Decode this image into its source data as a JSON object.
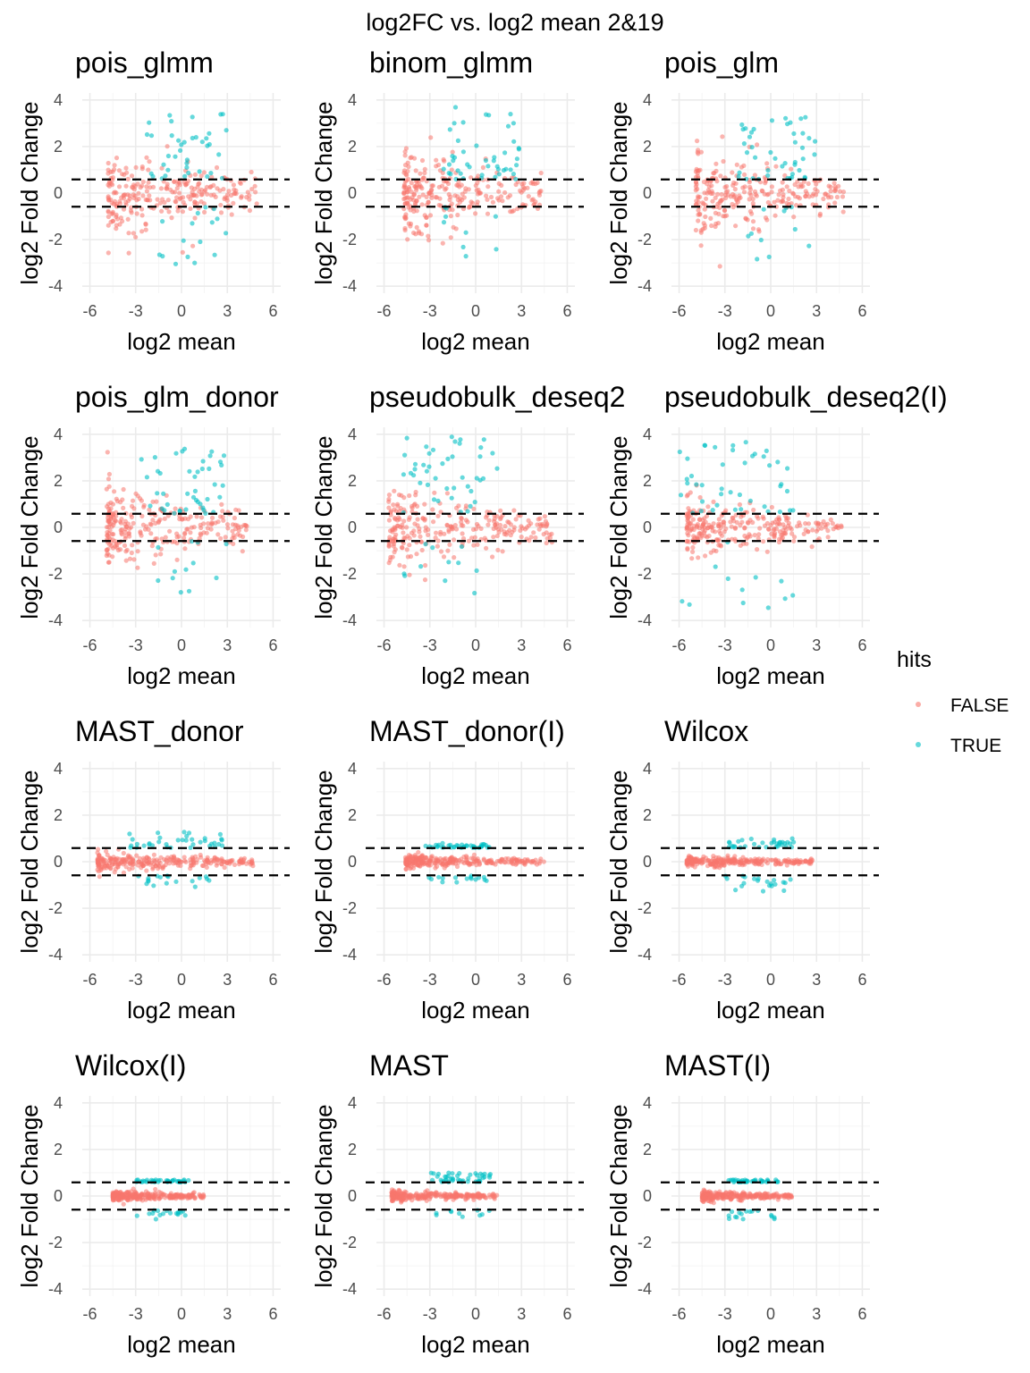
{
  "title": "log2FC vs. log2 mean  2&19",
  "legend": {
    "title": "hits",
    "entries": [
      {
        "label": "FALSE",
        "color": "#F8766D"
      },
      {
        "label": "TRUE",
        "color": "#00BFC4"
      }
    ]
  },
  "chart_data": [
    {
      "type": "scatter",
      "title": "pois_glmm",
      "xlabel": "log2 mean",
      "ylabel": "log2 Fold Change",
      "xlim": [
        -6.5,
        6.5
      ],
      "ylim": [
        -4.3,
        4.3
      ],
      "xticks": [
        -6,
        -3,
        0,
        3,
        6
      ],
      "yticks": [
        -4,
        -2,
        0,
        2,
        4
      ],
      "hlines": [
        -0.585,
        0.585
      ],
      "series": [
        {
          "name": "FALSE",
          "x_range": [
            -4.8,
            5.0
          ],
          "y_spread": [
            -3.5,
            3.6
          ]
        },
        {
          "name": "TRUE",
          "x_range": [
            -2.3,
            3.0
          ],
          "y_range": [
            -3.1,
            3.5
          ]
        }
      ]
    },
    {
      "type": "scatter",
      "title": "binom_glmm",
      "xlabel": "log2 mean",
      "ylabel": "log2 Fold Change",
      "xlim": [
        -6.5,
        6.5
      ],
      "ylim": [
        -4.3,
        4.3
      ],
      "xticks": [
        -6,
        -3,
        0,
        3,
        6
      ],
      "yticks": [
        -4,
        -2,
        0,
        2,
        4
      ],
      "hlines": [
        -0.585,
        0.585
      ],
      "series": [
        {
          "name": "FALSE",
          "x_range": [
            -4.7,
            4.3
          ],
          "y_spread": [
            -3.6,
            4.0
          ]
        },
        {
          "name": "TRUE",
          "x_range": [
            -2.5,
            3.0
          ],
          "y_range": [
            -3.6,
            3.9
          ]
        }
      ]
    },
    {
      "type": "scatter",
      "title": "pois_glm",
      "xlabel": "log2 mean",
      "ylabel": "log2 Fold Change",
      "xlim": [
        -6.5,
        6.5
      ],
      "ylim": [
        -4.3,
        4.3
      ],
      "xticks": [
        -6,
        -3,
        0,
        3,
        6
      ],
      "yticks": [
        -4,
        -2,
        0,
        2,
        4
      ],
      "hlines": [
        -0.585,
        0.585
      ],
      "series": [
        {
          "name": "FALSE",
          "x_range": [
            -4.9,
            4.8
          ],
          "y_spread": [
            -3.7,
            3.3
          ]
        },
        {
          "name": "TRUE",
          "x_range": [
            -2.3,
            3.0
          ],
          "y_range": [
            -3.2,
            3.3
          ]
        }
      ]
    },
    {
      "type": "scatter",
      "title": "pois_glm_donor",
      "xlabel": "log2 mean",
      "ylabel": "log2 Fold Change",
      "xlim": [
        -6.5,
        6.5
      ],
      "ylim": [
        -4.3,
        4.3
      ],
      "xticks": [
        -6,
        -3,
        0,
        3,
        6
      ],
      "yticks": [
        -4,
        -2,
        0,
        2,
        4
      ],
      "hlines": [
        -0.585,
        0.585
      ],
      "series": [
        {
          "name": "FALSE",
          "x_range": [
            -4.9,
            4.9
          ],
          "y_spread": [
            -3.4,
            3.8
          ]
        },
        {
          "name": "TRUE",
          "x_range": [
            -2.7,
            3.0
          ],
          "y_range": [
            -3.0,
            3.5
          ]
        }
      ]
    },
    {
      "type": "scatter",
      "title": "pseudobulk_deseq2",
      "xlabel": "log2 mean",
      "ylabel": "log2 Fold Change",
      "xlim": [
        -6.5,
        6.5
      ],
      "ylim": [
        -4.3,
        4.3
      ],
      "xticks": [
        -6,
        -3,
        0,
        3,
        6
      ],
      "yticks": [
        -4,
        -2,
        0,
        2,
        4
      ],
      "hlines": [
        -0.585,
        0.585
      ],
      "series": [
        {
          "name": "FALSE",
          "x_range": [
            -5.7,
            5.0
          ],
          "y_spread": [
            -3.2,
            3.3
          ]
        },
        {
          "name": "TRUE",
          "x_range": [
            -5.0,
            1.5
          ],
          "y_range": [
            -3.6,
            3.9
          ]
        }
      ]
    },
    {
      "type": "scatter",
      "title": "pseudobulk_deseq2(I)",
      "xlabel": "log2 mean",
      "ylabel": "log2 Fold Change",
      "xlim": [
        -6.5,
        6.5
      ],
      "ylim": [
        -4.3,
        4.3
      ],
      "xticks": [
        -6,
        -3,
        0,
        3,
        6
      ],
      "yticks": [
        -4,
        -2,
        0,
        2,
        4
      ],
      "hlines": [
        -0.585,
        0.585
      ],
      "series": [
        {
          "name": "FALSE",
          "x_range": [
            -5.5,
            4.7
          ],
          "y_spread": [
            -2.4,
            2.1
          ]
        },
        {
          "name": "TRUE",
          "x_range": [
            -6.0,
            1.5
          ],
          "y_range": [
            -3.7,
            3.9
          ]
        }
      ]
    },
    {
      "type": "scatter",
      "title": "MAST_donor",
      "xlabel": "log2 mean",
      "ylabel": "log2 Fold Change",
      "xlim": [
        -6.5,
        6.5
      ],
      "ylim": [
        -4.3,
        4.3
      ],
      "xticks": [
        -6,
        -3,
        0,
        3,
        6
      ],
      "yticks": [
        -4,
        -2,
        0,
        2,
        4
      ],
      "hlines": [
        -0.585,
        0.585
      ],
      "series": [
        {
          "name": "FALSE",
          "x_range": [
            -5.5,
            4.8
          ],
          "y_spread": [
            -0.8,
            0.9
          ]
        },
        {
          "name": "TRUE",
          "x_range": [
            -3.5,
            3.0
          ],
          "y_range": [
            -1.1,
            1.3
          ]
        }
      ]
    },
    {
      "type": "scatter",
      "title": "MAST_donor(I)",
      "xlabel": "log2 mean",
      "ylabel": "log2 Fold Change",
      "xlim": [
        -6.5,
        6.5
      ],
      "ylim": [
        -4.3,
        4.3
      ],
      "xticks": [
        -6,
        -3,
        0,
        3,
        6
      ],
      "yticks": [
        -4,
        -2,
        0,
        2,
        4
      ],
      "hlines": [
        -0.585,
        0.585
      ],
      "series": [
        {
          "name": "FALSE",
          "x_range": [
            -4.6,
            4.5
          ],
          "y_spread": [
            -0.6,
            0.6
          ]
        },
        {
          "name": "TRUE",
          "x_range": [
            -3.5,
            1.0
          ],
          "y_range": [
            -0.9,
            0.8
          ]
        }
      ]
    },
    {
      "type": "scatter",
      "title": "Wilcox",
      "xlabel": "log2 mean",
      "ylabel": "log2 Fold Change",
      "xlim": [
        -6.5,
        6.5
      ],
      "ylim": [
        -4.3,
        4.3
      ],
      "xticks": [
        -6,
        -3,
        0,
        3,
        6
      ],
      "yticks": [
        -4,
        -2,
        0,
        2,
        4
      ],
      "hlines": [
        -0.585,
        0.585
      ],
      "series": [
        {
          "name": "FALSE",
          "x_range": [
            -5.5,
            2.8
          ],
          "y_spread": [
            -0.4,
            0.5
          ]
        },
        {
          "name": "TRUE",
          "x_range": [
            -3.0,
            1.5
          ],
          "y_range": [
            -1.3,
            1.0
          ]
        }
      ]
    },
    {
      "type": "scatter",
      "title": "Wilcox(I)",
      "xlabel": "log2 mean",
      "ylabel": "log2 Fold Change",
      "xlim": [
        -6.5,
        6.5
      ],
      "ylim": [
        -4.3,
        4.3
      ],
      "xticks": [
        -6,
        -3,
        0,
        3,
        6
      ],
      "yticks": [
        -4,
        -2,
        0,
        2,
        4
      ],
      "hlines": [
        -0.585,
        0.585
      ],
      "series": [
        {
          "name": "FALSE",
          "x_range": [
            -4.5,
            1.5
          ],
          "y_spread": [
            -0.4,
            0.5
          ]
        },
        {
          "name": "TRUE",
          "x_range": [
            -3.0,
            0.5
          ],
          "y_range": [
            -1.0,
            0.7
          ]
        }
      ]
    },
    {
      "type": "scatter",
      "title": "MAST",
      "xlabel": "log2 mean",
      "ylabel": "log2 Fold Change",
      "xlim": [
        -6.5,
        6.5
      ],
      "ylim": [
        -4.3,
        4.3
      ],
      "xticks": [
        -6,
        -3,
        0,
        3,
        6
      ],
      "yticks": [
        -4,
        -2,
        0,
        2,
        4
      ],
      "hlines": [
        -0.585,
        0.585
      ],
      "series": [
        {
          "name": "FALSE",
          "x_range": [
            -5.5,
            1.5
          ],
          "y_spread": [
            -0.4,
            0.5
          ]
        },
        {
          "name": "TRUE",
          "x_range": [
            -3.0,
            1.0
          ],
          "y_range": [
            -1.2,
            1.0
          ]
        }
      ]
    },
    {
      "type": "scatter",
      "title": "MAST(I)",
      "xlabel": "log2 mean",
      "ylabel": "log2 Fold Change",
      "xlim": [
        -6.5,
        6.5
      ],
      "ylim": [
        -4.3,
        4.3
      ],
      "xticks": [
        -6,
        -3,
        0,
        3,
        6
      ],
      "yticks": [
        -4,
        -2,
        0,
        2,
        4
      ],
      "hlines": [
        -0.585,
        0.585
      ],
      "series": [
        {
          "name": "FALSE",
          "x_range": [
            -4.5,
            1.5
          ],
          "y_spread": [
            -0.4,
            0.5
          ]
        },
        {
          "name": "TRUE",
          "x_range": [
            -2.8,
            0.5
          ],
          "y_range": [
            -1.0,
            0.7
          ]
        }
      ]
    }
  ]
}
